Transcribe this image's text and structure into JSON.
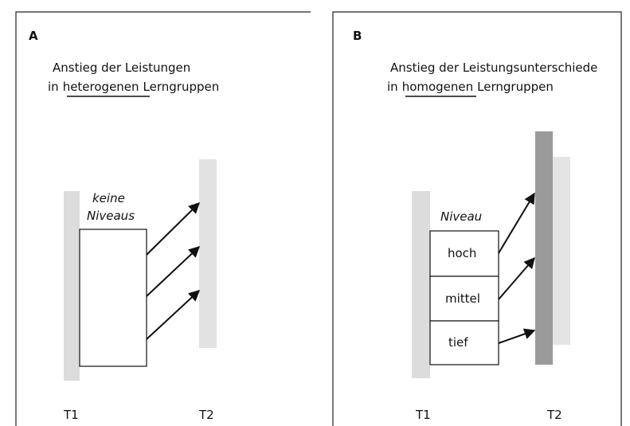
{
  "panels": [
    {
      "label": "A",
      "title_line1": "Anstieg der Leistungen",
      "title_line2": {
        "before": "in",
        "underlined": "heterogenen",
        "after": "Lerngruppen"
      },
      "group_label": [
        "keine",
        "Niveaus"
      ],
      "t1": "T1",
      "t2": "T2"
    },
    {
      "label": "B",
      "title_line1": "Anstieg der Leistungsunterschiede",
      "title_line2": {
        "before": "in",
        "underlined": "homogenen",
        "after": "Lerngruppen"
      },
      "group_label": "Niveau",
      "levels": [
        "hoch",
        "mittel",
        "tief"
      ],
      "t1": "T1",
      "t2": "T2"
    }
  ]
}
